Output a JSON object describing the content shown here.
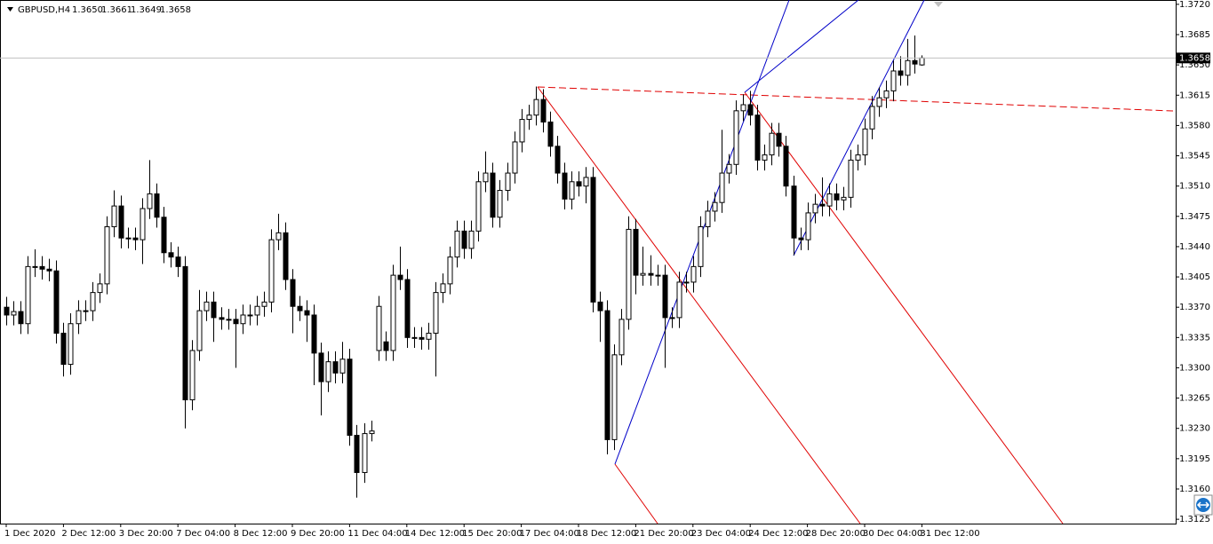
{
  "chart_data": {
    "type": "candlestick",
    "title": "GBPUSD,H4",
    "ohlc_labels": [
      "1.3650",
      "1.3661",
      "1.3649",
      "1.3658"
    ],
    "categories": [
      "1 Dec 2020",
      null,
      null,
      null,
      null,
      null,
      null,
      null,
      "2 Dec 12:00",
      null,
      null,
      null,
      null,
      null,
      null,
      null,
      "3 Dec 20:00",
      null,
      null,
      null,
      null,
      null,
      null,
      null,
      "7 Dec 04:00",
      null,
      null,
      null,
      null,
      null,
      null,
      null,
      "8 Dec 12:00",
      null,
      null,
      null,
      null,
      null,
      null,
      null,
      "9 Dec 20:00",
      null,
      null,
      null,
      null,
      null,
      null,
      null,
      "11 Dec 04:00",
      null,
      null,
      null,
      null,
      null,
      null,
      null,
      "14 Dec 12:00",
      null,
      null,
      null,
      null,
      null,
      null,
      null,
      "15 Dec 20:00",
      null,
      null,
      null,
      null,
      null,
      null,
      null,
      "17 Dec 04:00",
      null,
      null,
      null,
      null,
      null,
      null,
      null,
      "18 Dec 12:00",
      null,
      null,
      null,
      null,
      null,
      null,
      null,
      "21 Dec 20:00",
      null,
      null,
      null,
      null,
      null,
      null,
      null,
      "23 Dec 04:00",
      null,
      null,
      null,
      null,
      null,
      null,
      null,
      "24 Dec 12:00",
      null,
      null,
      null,
      null,
      null,
      null,
      null,
      "28 Dec 20:00",
      null,
      null,
      null,
      null,
      null,
      null,
      null,
      "30 Dec 04:00",
      null,
      null,
      null,
      null,
      null,
      null,
      null,
      "31 Dec 12:00"
    ],
    "open": [
      1.337,
      1.3361,
      1.3365,
      1.3351,
      1.3417,
      1.3417,
      1.3414,
      1.3412,
      1.334,
      1.3304,
      1.3351,
      1.3366,
      1.3366,
      1.3387,
      1.3397,
      1.3463,
      1.3487,
      1.345,
      1.345,
      1.3448,
      1.3484,
      1.3501,
      1.3474,
      1.3433,
      1.3428,
      1.3417,
      1.3263,
      1.332,
      1.3366,
      1.3376,
      1.3358,
      1.3356,
      1.3356,
      1.3351,
      1.3361,
      1.3361,
      1.3371,
      1.3376,
      1.3448,
      1.3456,
      1.3402,
      1.3371,
      1.3366,
      1.3361,
      1.3317,
      1.3284,
      1.3307,
      1.3294,
      1.331,
      1.3222,
      1.3179,
      1.3224,
      1.332,
      1.333,
      1.332,
      1.3407,
      1.3402,
      1.3335,
      1.3335,
      1.3333,
      1.334,
      1.3387,
      1.3397,
      1.3428,
      1.3458,
      1.3438,
      1.3458,
      1.3515,
      1.3525,
      1.3474,
      1.3505,
      1.3525,
      1.3561,
      1.3587,
      1.3592,
      1.361,
      1.3584,
      1.3556,
      1.3525,
      1.3495,
      1.3515,
      1.351,
      1.352,
      1.3376,
      1.3366,
      1.3217,
      1.3315,
      1.3356,
      1.346,
      1.3407,
      1.3409,
      1.3407,
      1.3407,
      1.3358,
      1.3358,
      1.3399,
      1.3399,
      1.3417,
      1.3463,
      1.3481,
      1.3491,
      1.3525,
      1.3535,
      1.3597,
      1.3604,
      1.3592,
      1.354,
      1.3546,
      1.3571,
      1.3556,
      1.351,
      1.345,
      1.3448,
      1.3479,
      1.3489,
      1.3487,
      1.3501,
      1.3494,
      1.3497,
      1.354,
      1.3546,
      1.3576,
      1.3602,
      1.3612,
      1.362,
      1.3643,
      1.3638,
      1.3655,
      1.365
    ],
    "high": [
      1.3382,
      1.3377,
      1.3377,
      1.3429,
      1.3437,
      1.3429,
      1.3426,
      1.3424,
      1.3352,
      1.3363,
      1.3378,
      1.3378,
      1.3399,
      1.3409,
      1.3475,
      1.3505,
      1.3499,
      1.3462,
      1.3462,
      1.3496,
      1.354,
      1.3513,
      1.3486,
      1.3445,
      1.344,
      1.3429,
      1.3332,
      1.339,
      1.3388,
      1.3388,
      1.337,
      1.3368,
      1.3368,
      1.3373,
      1.3373,
      1.3383,
      1.3388,
      1.346,
      1.3478,
      1.3468,
      1.3414,
      1.3383,
      1.3378,
      1.3373,
      1.3329,
      1.3319,
      1.3319,
      1.333,
      1.3322,
      1.3234,
      1.3236,
      1.3239,
      1.3383,
      1.3342,
      1.3419,
      1.344,
      1.3414,
      1.3347,
      1.3347,
      1.3352,
      1.3399,
      1.3409,
      1.344,
      1.347,
      1.347,
      1.347,
      1.3527,
      1.355,
      1.3537,
      1.3517,
      1.3537,
      1.3573,
      1.3599,
      1.3604,
      1.3625,
      1.3622,
      1.3596,
      1.3568,
      1.3537,
      1.3527,
      1.3527,
      1.3532,
      1.3532,
      1.3388,
      1.3378,
      1.3327,
      1.3368,
      1.3475,
      1.3472,
      1.344,
      1.343,
      1.3419,
      1.3419,
      1.337,
      1.3411,
      1.3411,
      1.3429,
      1.3475,
      1.3493,
      1.3503,
      1.3575,
      1.3547,
      1.3609,
      1.3616,
      1.362,
      1.3604,
      1.3558,
      1.3583,
      1.3583,
      1.3568,
      1.3522,
      1.3462,
      1.3491,
      1.3501,
      1.352,
      1.3513,
      1.3513,
      1.3509,
      1.3552,
      1.3558,
      1.3588,
      1.3614,
      1.3624,
      1.3632,
      1.3655,
      1.366,
      1.368,
      1.3684,
      1.3661
    ],
    "low": [
      1.3349,
      1.3349,
      1.3339,
      1.3339,
      1.3405,
      1.3402,
      1.34,
      1.3328,
      1.329,
      1.3292,
      1.3339,
      1.3354,
      1.3354,
      1.3375,
      1.3385,
      1.3451,
      1.3438,
      1.3438,
      1.3436,
      1.342,
      1.3472,
      1.3462,
      1.3421,
      1.3416,
      1.3405,
      1.323,
      1.3251,
      1.3308,
      1.3354,
      1.333,
      1.3344,
      1.3344,
      1.33,
      1.3339,
      1.3349,
      1.3349,
      1.3359,
      1.3364,
      1.3436,
      1.339,
      1.334,
      1.3354,
      1.333,
      1.328,
      1.3245,
      1.3272,
      1.3282,
      1.3282,
      1.321,
      1.315,
      1.3167,
      1.3215,
      1.3308,
      1.3308,
      1.3308,
      1.339,
      1.3323,
      1.3323,
      1.3321,
      1.3321,
      1.329,
      1.3375,
      1.3385,
      1.3416,
      1.3426,
      1.3426,
      1.3446,
      1.3503,
      1.3462,
      1.3462,
      1.3493,
      1.3513,
      1.3549,
      1.3575,
      1.358,
      1.3572,
      1.3544,
      1.3513,
      1.3483,
      1.3483,
      1.3498,
      1.349,
      1.3364,
      1.333,
      1.32,
      1.3205,
      1.3303,
      1.3344,
      1.3385,
      1.3395,
      1.3395,
      1.3395,
      1.33,
      1.3346,
      1.3346,
      1.3387,
      1.3387,
      1.3405,
      1.3451,
      1.3469,
      1.3479,
      1.3513,
      1.3523,
      1.3585,
      1.358,
      1.3528,
      1.3528,
      1.3534,
      1.3544,
      1.3498,
      1.343,
      1.3436,
      1.3436,
      1.3467,
      1.3475,
      1.3475,
      1.3482,
      1.3482,
      1.3485,
      1.3528,
      1.3534,
      1.3564,
      1.359,
      1.36,
      1.3608,
      1.3626,
      1.3626,
      1.364,
      1.3649
    ],
    "close": [
      1.3361,
      1.3365,
      1.3351,
      1.3417,
      1.3417,
      1.3414,
      1.3412,
      1.334,
      1.3304,
      1.3351,
      1.3366,
      1.3366,
      1.3387,
      1.3397,
      1.3463,
      1.3487,
      1.345,
      1.345,
      1.3448,
      1.3484,
      1.3501,
      1.3474,
      1.3433,
      1.3428,
      1.3417,
      1.3263,
      1.332,
      1.3366,
      1.3376,
      1.3358,
      1.3356,
      1.3356,
      1.3351,
      1.3361,
      1.3361,
      1.3371,
      1.3376,
      1.3448,
      1.3456,
      1.3402,
      1.3371,
      1.3366,
      1.3361,
      1.3317,
      1.3284,
      1.3307,
      1.3294,
      1.331,
      1.3222,
      1.3179,
      1.3224,
      1.3227,
      1.3371,
      1.332,
      1.3407,
      1.3402,
      1.3335,
      1.3335,
      1.3333,
      1.334,
      1.3387,
      1.3397,
      1.3428,
      1.3458,
      1.3438,
      1.3458,
      1.3515,
      1.3525,
      1.3474,
      1.3505,
      1.3525,
      1.3561,
      1.3587,
      1.3592,
      1.361,
      1.3584,
      1.3556,
      1.3525,
      1.3495,
      1.3515,
      1.351,
      1.352,
      1.3376,
      1.3366,
      1.3217,
      1.3315,
      1.3356,
      1.346,
      1.3407,
      1.3409,
      1.3407,
      1.3407,
      1.3358,
      1.3358,
      1.3399,
      1.3399,
      1.3417,
      1.3463,
      1.3481,
      1.3491,
      1.3525,
      1.3535,
      1.3597,
      1.3604,
      1.3592,
      1.354,
      1.3546,
      1.3571,
      1.3556,
      1.351,
      1.345,
      1.3448,
      1.3479,
      1.3489,
      1.3487,
      1.3501,
      1.3494,
      1.3497,
      1.354,
      1.3546,
      1.3576,
      1.3602,
      1.3612,
      1.362,
      1.3643,
      1.3638,
      1.3655,
      1.3651,
      1.3658
    ],
    "ylim": [
      1.312,
      1.3725
    ],
    "yticks": [
      {
        "value": 1.372,
        "label": "1.3720"
      },
      {
        "value": 1.3685,
        "label": "1.3685"
      },
      {
        "value": 1.365,
        "label": "1.3650"
      },
      {
        "value": 1.3615,
        "label": "1.3615"
      },
      {
        "value": 1.358,
        "label": "1.3580"
      },
      {
        "value": 1.3545,
        "label": "1.3545"
      },
      {
        "value": 1.351,
        "label": "1.3510"
      },
      {
        "value": 1.3475,
        "label": "1.3475"
      },
      {
        "value": 1.344,
        "label": "1.3440"
      },
      {
        "value": 1.3405,
        "label": "1.3405"
      },
      {
        "value": 1.337,
        "label": "1.3370"
      },
      {
        "value": 1.3335,
        "label": "1.3335"
      },
      {
        "value": 1.33,
        "label": "1.3300"
      },
      {
        "value": 1.3265,
        "label": "1.3265"
      },
      {
        "value": 1.323,
        "label": "1.3230"
      },
      {
        "value": 1.3195,
        "label": "1.3195"
      },
      {
        "value": 1.316,
        "label": "1.3160"
      },
      {
        "value": 1.3125,
        "label": "1.3125"
      }
    ],
    "up_color": "#ffffff",
    "down_color": "#000000"
  }
}
